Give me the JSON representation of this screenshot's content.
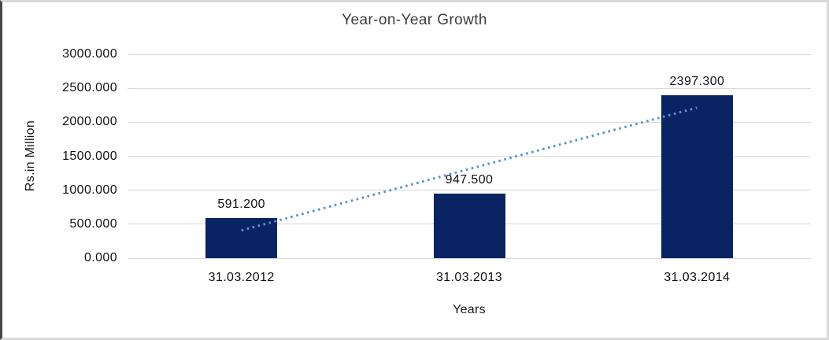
{
  "chart_data": {
    "type": "bar",
    "title": "Year-on-Year Growth",
    "xlabel": "Years",
    "ylabel": "Rs.in Million",
    "categories": [
      "31.03.2012",
      "31.03.2013",
      "31.03.2014"
    ],
    "values": [
      591.2,
      947.5,
      2397.3
    ],
    "data_labels": [
      "591.200",
      "947.500",
      "2397.300"
    ],
    "ylim": [
      0,
      3000
    ],
    "ytick_step": 500,
    "ytick_labels": [
      "0.000",
      "500.000",
      "1000.000",
      "1500.000",
      "2000.000",
      "2500.000",
      "3000.000"
    ],
    "grid": true,
    "legend": "none",
    "bar_color": "#0A2463",
    "gridline_color": "#D9D9D9",
    "trendline": {
      "type": "linear",
      "style": "dotted",
      "color": "#5B8FD1"
    }
  }
}
